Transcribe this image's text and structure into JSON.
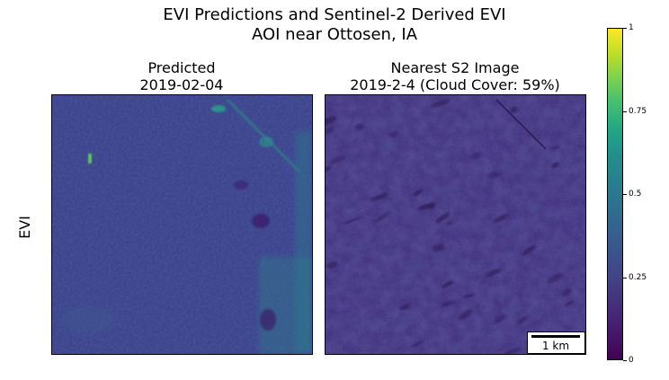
{
  "figure": {
    "title_line1": "EVI Predictions and Sentinel-2 Derived EVI",
    "title_line2": "AOI near Ottosen, IA",
    "row_label": "EVI"
  },
  "panels": [
    {
      "title_line1": "Predicted",
      "title_line2": "2019-02-04"
    },
    {
      "title_line1": "Nearest S2 Image",
      "title_line2": "2019-2-4 (Cloud Cover: 59%)"
    }
  ],
  "scalebar": {
    "label": "1 km"
  },
  "colors": {
    "viridis_low": "#440154",
    "viridis_mid": "#21918c",
    "viridis_high": "#fde725",
    "field_base_predicted": "#3b3f8a",
    "field_base_s2": "#3d2a7a"
  },
  "chart_data": {
    "type": "heatmap",
    "colormap": "viridis",
    "colorbar": {
      "range": [
        0,
        1
      ],
      "ticks": [
        0,
        0.25,
        0.5,
        0.75,
        1
      ],
      "tick_labels": [
        "0",
        "0.25",
        "0.5",
        "0.75",
        "1"
      ]
    },
    "panels": [
      "Predicted",
      "Nearest S2 Image"
    ],
    "ylabel": "EVI",
    "value_estimate": {
      "predicted_typical": 0.2,
      "s2_typical": 0.12
    }
  }
}
